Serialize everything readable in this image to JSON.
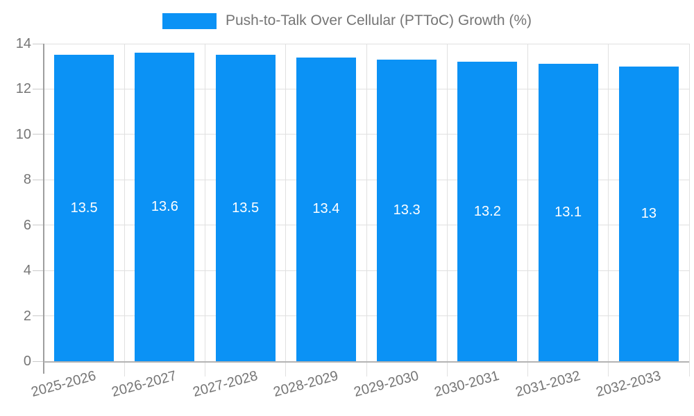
{
  "chart_data": {
    "type": "bar",
    "title": "Push-to-Talk Over Cellular (PTToC) Growth (%)",
    "categories": [
      "2025-2026",
      "2026-2027",
      "2027-2028",
      "2028-2029",
      "2029-2030",
      "2030-2031",
      "2031-2032",
      "2032-2033"
    ],
    "values": [
      13.5,
      13.6,
      13.5,
      13.4,
      13.3,
      13.2,
      13.1,
      13
    ],
    "value_labels": [
      "13.5",
      "13.6",
      "13.5",
      "13.4",
      "13.3",
      "13.2",
      "13.1",
      "13"
    ],
    "xlabel": "",
    "ylabel": "",
    "ylim": [
      0,
      14
    ],
    "yticks": [
      0,
      2,
      4,
      6,
      8,
      10,
      12,
      14
    ],
    "grid": true,
    "legend_position": "top center",
    "x_tick_rotation_deg": -15,
    "colors": {
      "bar": "#0b92f5",
      "bar_label": "#ffffff",
      "tick_text": "#757575",
      "legend_text": "#757575",
      "gridline": "#e0e0e0",
      "axis_line": "#9e9e9e",
      "baseline": "#b3b3b3",
      "tick_mark": "#c9c9c9"
    }
  }
}
